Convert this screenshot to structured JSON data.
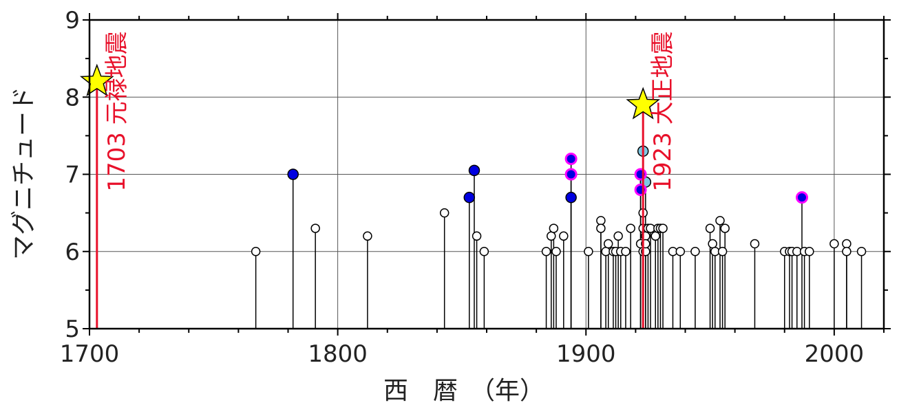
{
  "chart_data": {
    "type": "scatter",
    "xlabel": "西　暦　（年）",
    "ylabel": "マグニチュード",
    "xlim": [
      1700,
      2020
    ],
    "ylim": [
      5,
      9
    ],
    "x_ticks": [
      1700,
      1800,
      1900,
      2000
    ],
    "x_tick_labels": [
      "1700",
      "1800",
      "1900",
      "2000"
    ],
    "y_ticks": [
      5,
      6,
      7,
      8,
      9
    ],
    "y_tick_labels": [
      "5",
      "6",
      "7",
      "8",
      "9"
    ],
    "grid": true,
    "colors": {
      "highlight": "#e8102a",
      "star_fill": "#ffff00",
      "dark_blue": "#0000e0",
      "light_blue": "#7ec8e3",
      "magenta_ring": "#ff00ff",
      "open_marker": "#ffffff",
      "stem": "#000000"
    },
    "highlight_events": [
      {
        "year": 1703,
        "magnitude": 8.2,
        "label": "1703 元禄地震"
      },
      {
        "year": 1923,
        "magnitude": 7.9,
        "label": "1923 大正地震"
      }
    ],
    "series": [
      {
        "marker": "filled-dark-blue",
        "points": [
          {
            "x": 1782,
            "y": 7.0
          },
          {
            "x": 1853,
            "y": 6.7
          },
          {
            "x": 1855,
            "y": 7.05
          },
          {
            "x": 1894,
            "y": 6.7
          }
        ]
      },
      {
        "marker": "filled-blue-magenta-ring",
        "points": [
          {
            "x": 1894,
            "y": 7.2
          },
          {
            "x": 1894,
            "y": 7.0
          },
          {
            "x": 1922,
            "y": 7.0
          },
          {
            "x": 1922,
            "y": 6.8
          },
          {
            "x": 1987,
            "y": 6.7
          }
        ]
      },
      {
        "marker": "filled-light-blue",
        "points": [
          {
            "x": 1923,
            "y": 7.3
          },
          {
            "x": 1924,
            "y": 6.9
          }
        ]
      },
      {
        "marker": "open-circle",
        "points": [
          {
            "x": 1767,
            "y": 6.0
          },
          {
            "x": 1791,
            "y": 6.3
          },
          {
            "x": 1812,
            "y": 6.2
          },
          {
            "x": 1843,
            "y": 6.5
          },
          {
            "x": 1856,
            "y": 6.2
          },
          {
            "x": 1859,
            "y": 6.0
          },
          {
            "x": 1884,
            "y": 6.0
          },
          {
            "x": 1886,
            "y": 6.2
          },
          {
            "x": 1887,
            "y": 6.3
          },
          {
            "x": 1888,
            "y": 6.0
          },
          {
            "x": 1891,
            "y": 6.2
          },
          {
            "x": 1901,
            "y": 6.0
          },
          {
            "x": 1906,
            "y": 6.4
          },
          {
            "x": 1906,
            "y": 6.3
          },
          {
            "x": 1908,
            "y": 6.0
          },
          {
            "x": 1909,
            "y": 6.1
          },
          {
            "x": 1911,
            "y": 6.0
          },
          {
            "x": 1912,
            "y": 6.0
          },
          {
            "x": 1913,
            "y": 6.2
          },
          {
            "x": 1914,
            "y": 6.0
          },
          {
            "x": 1916,
            "y": 6.0
          },
          {
            "x": 1918,
            "y": 6.3
          },
          {
            "x": 1922,
            "y": 6.1
          },
          {
            "x": 1923,
            "y": 6.0
          },
          {
            "x": 1923,
            "y": 6.3
          },
          {
            "x": 1923,
            "y": 6.5
          },
          {
            "x": 1924,
            "y": 6.2
          },
          {
            "x": 1924,
            "y": 6.0
          },
          {
            "x": 1924,
            "y": 6.1
          },
          {
            "x": 1925,
            "y": 6.3
          },
          {
            "x": 1926,
            "y": 6.3
          },
          {
            "x": 1928,
            "y": 6.2
          },
          {
            "x": 1929,
            "y": 6.3
          },
          {
            "x": 1930,
            "y": 6.3
          },
          {
            "x": 1931,
            "y": 6.3
          },
          {
            "x": 1935,
            "y": 6.0
          },
          {
            "x": 1938,
            "y": 6.0
          },
          {
            "x": 1944,
            "y": 6.0
          },
          {
            "x": 1950,
            "y": 6.3
          },
          {
            "x": 1951,
            "y": 6.1
          },
          {
            "x": 1952,
            "y": 6.0
          },
          {
            "x": 1954,
            "y": 6.4
          },
          {
            "x": 1955,
            "y": 6.0
          },
          {
            "x": 1956,
            "y": 6.3
          },
          {
            "x": 1968,
            "y": 6.1
          },
          {
            "x": 1980,
            "y": 6.0
          },
          {
            "x": 1982,
            "y": 6.0
          },
          {
            "x": 1983,
            "y": 6.0
          },
          {
            "x": 1985,
            "y": 6.0
          },
          {
            "x": 1988,
            "y": 6.0
          },
          {
            "x": 1990,
            "y": 6.0
          },
          {
            "x": 2000,
            "y": 6.1
          },
          {
            "x": 2005,
            "y": 6.1
          },
          {
            "x": 2005,
            "y": 6.0
          },
          {
            "x": 2011,
            "y": 6.0
          }
        ]
      }
    ]
  }
}
